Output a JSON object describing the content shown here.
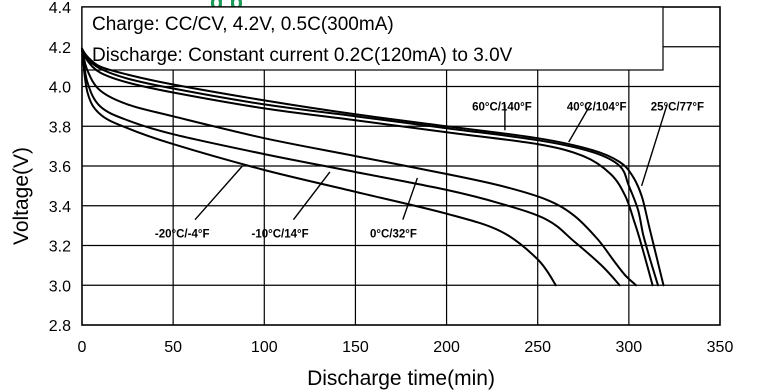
{
  "title_fragment": "g  p",
  "notes": [
    "Charge: CC/CV, 4.2V, 0.5C(300mA)",
    "Discharge: Constant current 0.2C(120mA) to 3.0V"
  ],
  "colors": {
    "curves": "#000000",
    "grid": "#000000",
    "title_fragment": "#1a9a57"
  },
  "chart_data": {
    "type": "line",
    "xlabel": "Discharge time(min)",
    "ylabel": "Voltage(V)",
    "xlim": [
      0,
      350
    ],
    "ylim": [
      2.8,
      4.4
    ],
    "xticks": [
      "0",
      "50",
      "100",
      "150",
      "200",
      "250",
      "300",
      "350"
    ],
    "yticks": [
      "2.8",
      "3.0",
      "3.2",
      "3.4",
      "3.6",
      "3.8",
      "4.0",
      "4.2",
      "4.4"
    ],
    "grid": true,
    "legend": "none",
    "series": [
      {
        "name": "25°C/77°F",
        "x": [
          0,
          3,
          10,
          25,
          50,
          100,
          150,
          200,
          250,
          280,
          295,
          302,
          307,
          311,
          315,
          319
        ],
        "y": [
          4.19,
          4.15,
          4.1,
          4.06,
          4.01,
          3.93,
          3.86,
          3.8,
          3.74,
          3.68,
          3.62,
          3.55,
          3.45,
          3.3,
          3.15,
          3.0
        ]
      },
      {
        "name": "40°C/104°F",
        "x": [
          0,
          3,
          10,
          25,
          50,
          100,
          150,
          200,
          250,
          280,
          295,
          300,
          305,
          308,
          312,
          316
        ],
        "y": [
          4.19,
          4.14,
          4.09,
          4.04,
          3.99,
          3.91,
          3.85,
          3.79,
          3.73,
          3.67,
          3.6,
          3.5,
          3.38,
          3.25,
          3.12,
          3.0
        ]
      },
      {
        "name": "60°C/140°F",
        "x": [
          0,
          3,
          10,
          25,
          50,
          100,
          150,
          200,
          250,
          275,
          290,
          298,
          303,
          307,
          313
        ],
        "y": [
          4.19,
          4.13,
          4.07,
          4.02,
          3.97,
          3.89,
          3.83,
          3.77,
          3.71,
          3.65,
          3.56,
          3.45,
          3.32,
          3.2,
          3.0
        ]
      },
      {
        "name": "0°C/32°F",
        "x": [
          0,
          3,
          10,
          25,
          50,
          100,
          150,
          200,
          230,
          255,
          270,
          283,
          292,
          298,
          304
        ],
        "y": [
          4.19,
          4.08,
          3.98,
          3.91,
          3.85,
          3.74,
          3.65,
          3.56,
          3.5,
          3.43,
          3.35,
          3.23,
          3.12,
          3.05,
          3.0
        ]
      },
      {
        "name": "-10°C/14°F",
        "x": [
          0,
          3,
          10,
          25,
          50,
          100,
          150,
          200,
          230,
          255,
          270,
          285,
          295
        ],
        "y": [
          4.19,
          4.02,
          3.9,
          3.83,
          3.76,
          3.66,
          3.57,
          3.48,
          3.41,
          3.33,
          3.22,
          3.1,
          3.0
        ]
      },
      {
        "name": "-20°C/-4°F",
        "x": [
          0,
          3,
          10,
          25,
          50,
          100,
          150,
          200,
          230,
          250,
          260
        ],
        "y": [
          4.19,
          3.97,
          3.86,
          3.79,
          3.71,
          3.58,
          3.47,
          3.36,
          3.27,
          3.13,
          3.0
        ]
      }
    ],
    "annotations": [
      {
        "text": "60°C/140°F",
        "x": 214,
        "y": 3.88,
        "tx": 232,
        "ty": 3.91,
        "tip_x": 232,
        "tip_y": 3.78
      },
      {
        "text": "40°C/104°F",
        "x": 266,
        "y": 3.88,
        "tx": 279,
        "ty": 3.91,
        "tip_x": 267,
        "tip_y": 3.72
      },
      {
        "text": "25°C/77°F",
        "x": 312,
        "y": 3.88,
        "tx": 321,
        "ty": 3.91,
        "tip_x": 307,
        "tip_y": 3.5
      },
      {
        "text": "-20°C/-4°F",
        "x": 40,
        "y": 3.24,
        "tx": 62,
        "ty": 3.33,
        "tip_x": 88,
        "tip_y": 3.6
      },
      {
        "text": "-10°C/14°F",
        "x": 93,
        "y": 3.24,
        "tx": 116,
        "ty": 3.33,
        "tip_x": 136,
        "tip_y": 3.57
      },
      {
        "text": "0°C/32°F",
        "x": 158,
        "y": 3.24,
        "tx": 176,
        "ty": 3.33,
        "tip_x": 184,
        "tip_y": 3.54
      }
    ]
  }
}
